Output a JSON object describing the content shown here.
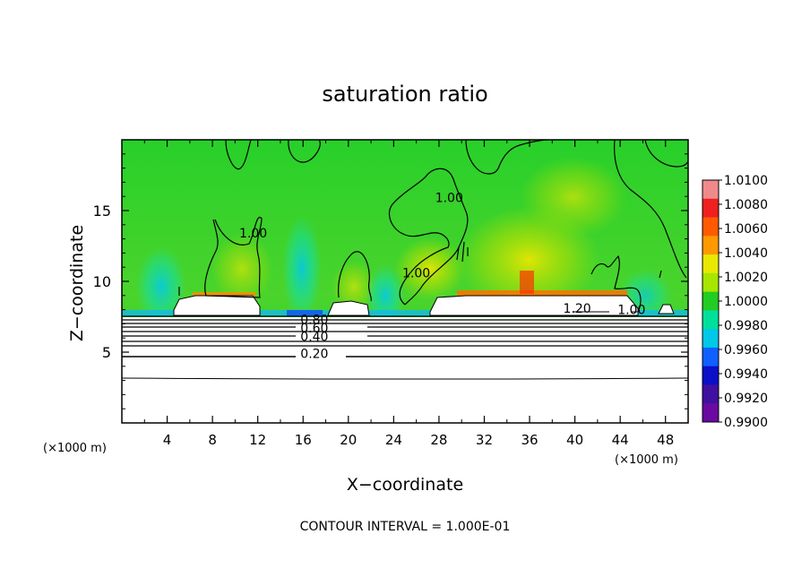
{
  "chart_data": {
    "type": "heatmap",
    "title": "saturation ratio",
    "xlabel": "X−coordinate",
    "ylabel": "Z−coordinate",
    "x_unit": "(×1000 m)",
    "x_unit_right": "(×1000 m)",
    "xlim": [
      0,
      50
    ],
    "ylim": [
      0,
      20
    ],
    "x_ticks": [
      4,
      8,
      12,
      16,
      20,
      24,
      28,
      32,
      36,
      40,
      44,
      48
    ],
    "y_ticks": [
      5,
      10,
      15
    ],
    "colorbar": {
      "min": 0.99,
      "max": 1.01,
      "tick_labels": [
        "1.0100",
        "1.0080",
        "1.0060",
        "1.0040",
        "1.0020",
        "1.0000",
        "0.9980",
        "0.9960",
        "0.9940",
        "0.9920",
        "0.9900"
      ],
      "colors": [
        "#f08a8a",
        "#ee2020",
        "#ff5a00",
        "#ff9900",
        "#e8e800",
        "#a6e600",
        "#22cc22",
        "#00e09a",
        "#00c8e8",
        "#1060ff",
        "#0a10c8",
        "#4010a0",
        "#6a0aa0"
      ]
    },
    "contour_labels": [
      {
        "text": "1.00",
        "x": 11.6,
        "y": 13.1
      },
      {
        "text": "1.00",
        "x": 28.9,
        "y": 15.6
      },
      {
        "text": "1.00",
        "x": 26.0,
        "y": 10.3
      },
      {
        "text": "1.20",
        "x": 40.2,
        "y": 7.8
      },
      {
        "text": "1.00",
        "x": 45.0,
        "y": 7.7
      },
      {
        "text": "0.80",
        "x": 17.0,
        "y": 7.0
      },
      {
        "text": "0.60",
        "x": 17.0,
        "y": 6.4
      },
      {
        "text": "0.40",
        "x": 17.0,
        "y": 5.8
      },
      {
        "text": "0.20",
        "x": 17.0,
        "y": 4.6
      }
    ],
    "footer": "CONTOUR INTERVAL = 1.000E-01"
  }
}
